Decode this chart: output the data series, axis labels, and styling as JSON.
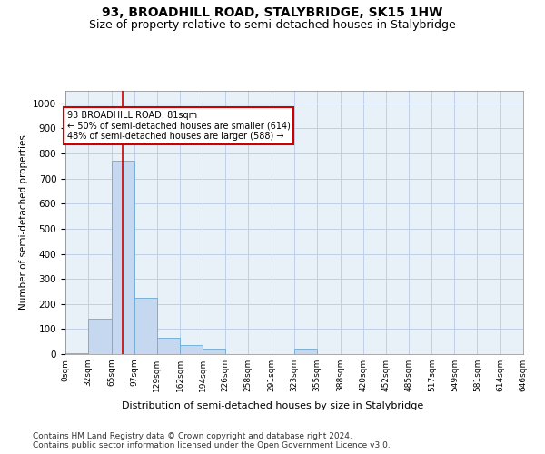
{
  "title": "93, BROADHILL ROAD, STALYBRIDGE, SK15 1HW",
  "subtitle": "Size of property relative to semi-detached houses in Stalybridge",
  "xlabel": "Distribution of semi-detached houses by size in Stalybridge",
  "ylabel": "Number of semi-detached properties",
  "bar_color": "#c5d8ef",
  "bar_edge_color": "#6aaad4",
  "grid_color": "#c0d0e8",
  "bg_color": "#e8f0f8",
  "annotation_text": "93 BROADHILL ROAD: 81sqm\n← 50% of semi-detached houses are smaller (614)\n48% of semi-detached houses are larger (588) →",
  "annotation_box_color": "#ffffff",
  "annotation_box_edge": "#cc0000",
  "vline_x": 81,
  "vline_color": "#cc0000",
  "bins": [
    0,
    32,
    65,
    97,
    129,
    162,
    194,
    226,
    258,
    291,
    323,
    355,
    388,
    420,
    452,
    485,
    517,
    549,
    581,
    614,
    646
  ],
  "bin_labels": [
    "0sqm",
    "32sqm",
    "65sqm",
    "97sqm",
    "129sqm",
    "162sqm",
    "194sqm",
    "226sqm",
    "258sqm",
    "291sqm",
    "323sqm",
    "355sqm",
    "388sqm",
    "420sqm",
    "452sqm",
    "485sqm",
    "517sqm",
    "549sqm",
    "581sqm",
    "614sqm",
    "646sqm"
  ],
  "counts": [
    5,
    140,
    770,
    225,
    65,
    35,
    20,
    0,
    0,
    0,
    20,
    0,
    0,
    0,
    0,
    0,
    0,
    0,
    0,
    0
  ],
  "ylim": [
    0,
    1050
  ],
  "yticks": [
    0,
    100,
    200,
    300,
    400,
    500,
    600,
    700,
    800,
    900,
    1000
  ],
  "footer": "Contains HM Land Registry data © Crown copyright and database right 2024.\nContains public sector information licensed under the Open Government Licence v3.0.",
  "title_fontsize": 10,
  "subtitle_fontsize": 9,
  "footer_fontsize": 6.5
}
